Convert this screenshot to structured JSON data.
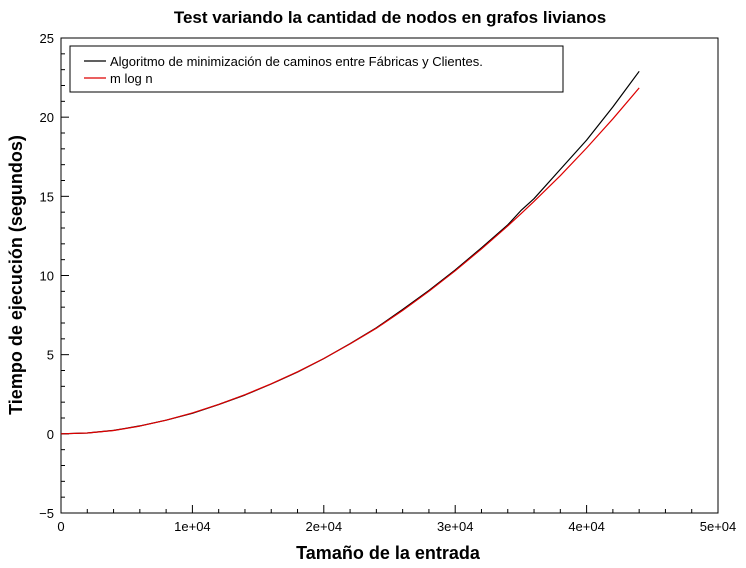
{
  "chart_data": {
    "type": "line",
    "title": "Test variando la cantidad de nodos en grafos livianos",
    "xlabel": "Tamaño de la entrada",
    "ylabel": "Tiempo de ejecución (segundos)",
    "xlim": [
      0,
      50000
    ],
    "ylim": [
      -5,
      25
    ],
    "xticks": [
      0,
      10000,
      20000,
      30000,
      40000,
      50000
    ],
    "xtick_labels": [
      "0",
      "1e+04",
      "2e+04",
      "3e+04",
      "4e+04",
      "5e+04"
    ],
    "yticks": [
      -5,
      0,
      5,
      10,
      15,
      20,
      25
    ],
    "ytick_labels": [
      "−5",
      "0",
      "5",
      "10",
      "15",
      "20",
      "25"
    ],
    "grid": false,
    "legend_position": "top-left",
    "x": [
      0,
      2000,
      4000,
      6000,
      8000,
      10000,
      12000,
      14000,
      16000,
      18000,
      20000,
      22000,
      24000,
      26000,
      28000,
      30000,
      32000,
      34000,
      35000,
      36000,
      38000,
      40000,
      42000,
      44000
    ],
    "series": [
      {
        "name": "Algoritmo de minimización de caminos entre Fábricas y Clientes.",
        "color": "#000000",
        "values": [
          0,
          0.05,
          0.22,
          0.5,
          0.86,
          1.3,
          1.85,
          2.45,
          3.15,
          3.9,
          4.75,
          5.7,
          6.7,
          7.85,
          9.05,
          10.35,
          11.75,
          13.2,
          14.1,
          14.85,
          16.7,
          18.55,
          20.65,
          22.9
        ]
      },
      {
        "name": "m log n",
        "color": "#dd0000",
        "values": [
          0,
          0.05,
          0.21,
          0.49,
          0.86,
          1.32,
          1.86,
          2.47,
          3.16,
          3.92,
          4.76,
          5.68,
          6.67,
          7.79,
          9.0,
          10.3,
          11.68,
          13.13,
          13.9,
          14.68,
          16.3,
          18.05,
          19.9,
          21.85
        ]
      }
    ]
  }
}
